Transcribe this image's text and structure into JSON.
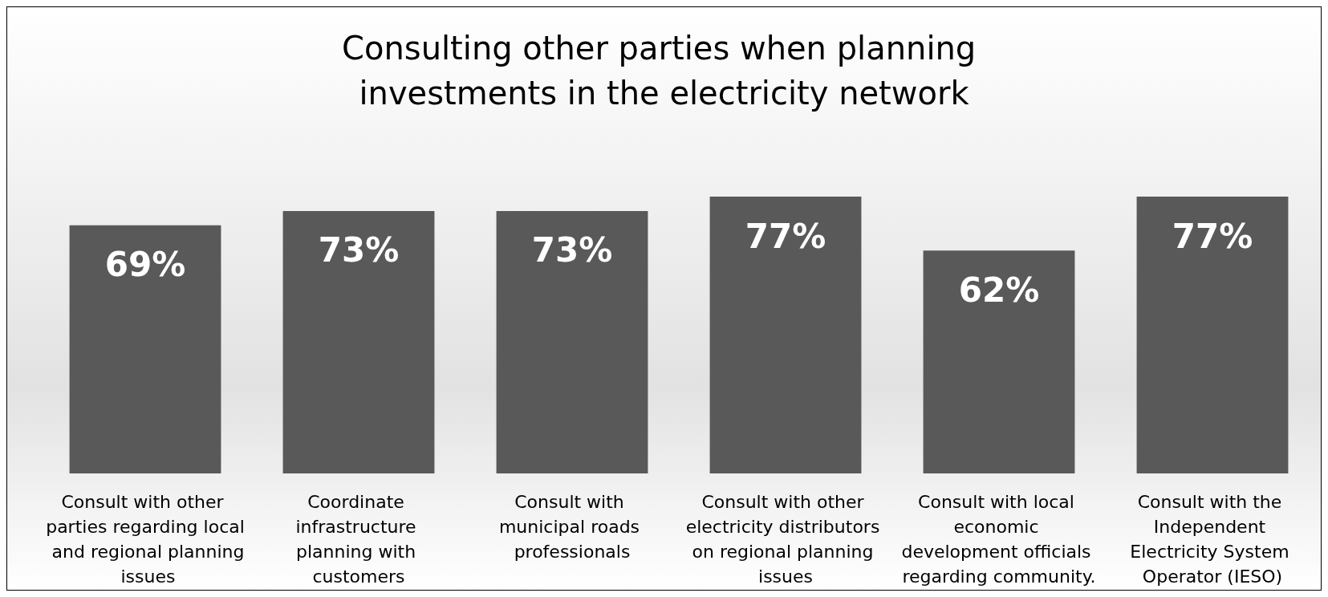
{
  "chart_data": {
    "type": "bar",
    "title": "Consulting other parties when planning investments in the electricity network",
    "categories": [
      "Consult with other parties regarding local and regional planning issues",
      "Coordinate infrastructure planning with customers",
      "Consult with municipal roads professionals",
      "Consult with other electricity distributors on regional planning issues",
      "Consult with local economic development officials regarding community.",
      "Consult with the Independent Electricity System Operator (IESO)"
    ],
    "values": [
      69,
      73,
      73,
      77,
      62,
      77
    ],
    "value_labels": [
      "69%",
      "73%",
      "73%",
      "77%",
      "62%",
      "77%"
    ],
    "color": "#595959"
  }
}
